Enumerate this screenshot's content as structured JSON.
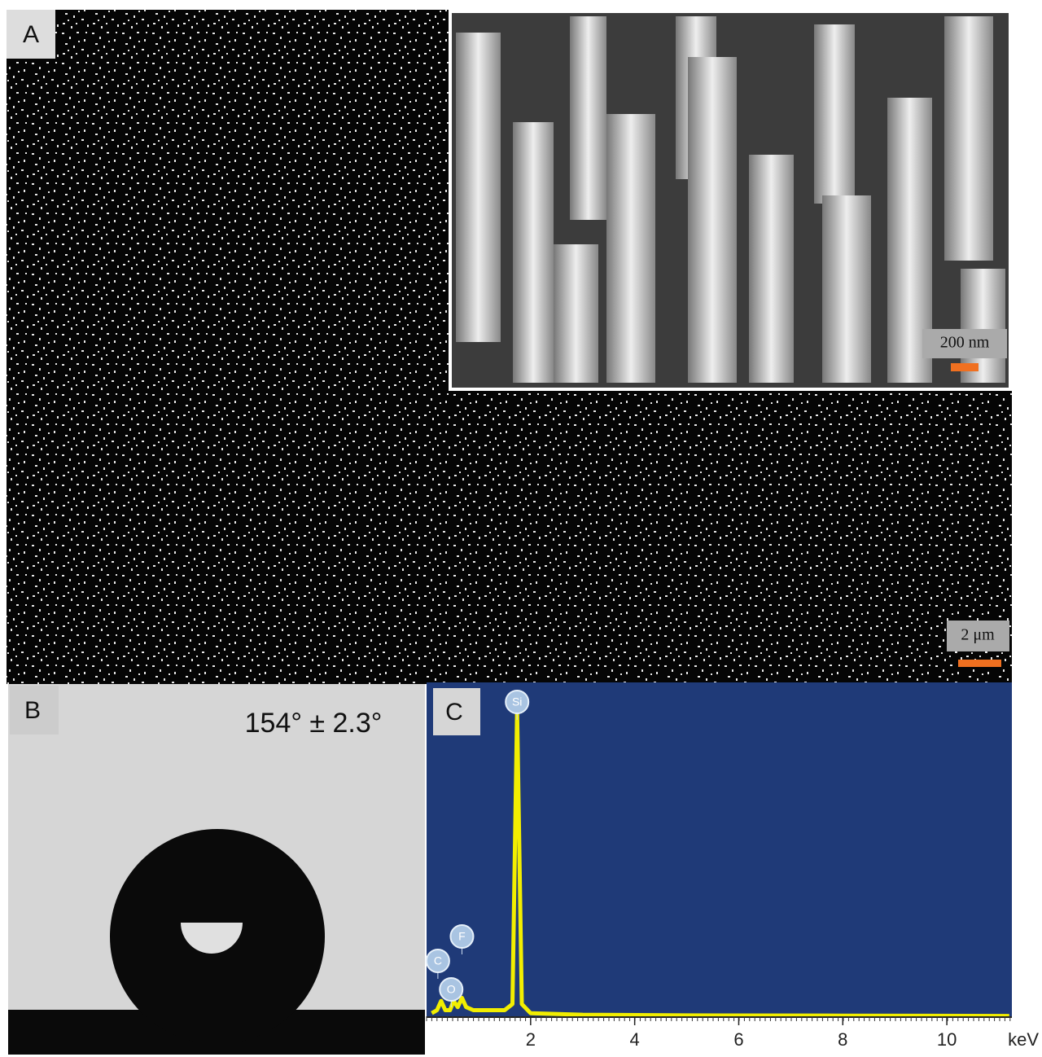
{
  "panels": {
    "a": {
      "label": "A",
      "inset_scale_bar": "200 nm",
      "scale_bar": "2 μm"
    },
    "b": {
      "label": "B",
      "contact_angle": "154° ± 2.3°"
    },
    "c": {
      "label": "C"
    }
  },
  "chart_data": {
    "type": "line",
    "x": [
      0.1,
      0.2,
      0.28,
      0.36,
      0.45,
      0.52,
      0.6,
      0.68,
      0.76,
      0.9,
      1.5,
      1.65,
      1.74,
      1.83,
      2.0,
      3,
      5,
      8,
      11.2
    ],
    "values": [
      1,
      2,
      5,
      2,
      2,
      5,
      3,
      6,
      3,
      2,
      2,
      4,
      100,
      4,
      1,
      0.5,
      0.3,
      0.2,
      0.1
    ],
    "color": "#f2ee00",
    "xlim": [
      0,
      11.25
    ],
    "ylim": [
      0,
      100
    ],
    "xticks": [
      2,
      4,
      6,
      8,
      10
    ],
    "x_label": "keV",
    "annotations": [
      {
        "text": "Si",
        "x": 1.74
      },
      {
        "text": "F",
        "x": 0.68
      },
      {
        "text": "C",
        "x": 0.28
      },
      {
        "text": "O",
        "x": 0.52
      }
    ]
  }
}
